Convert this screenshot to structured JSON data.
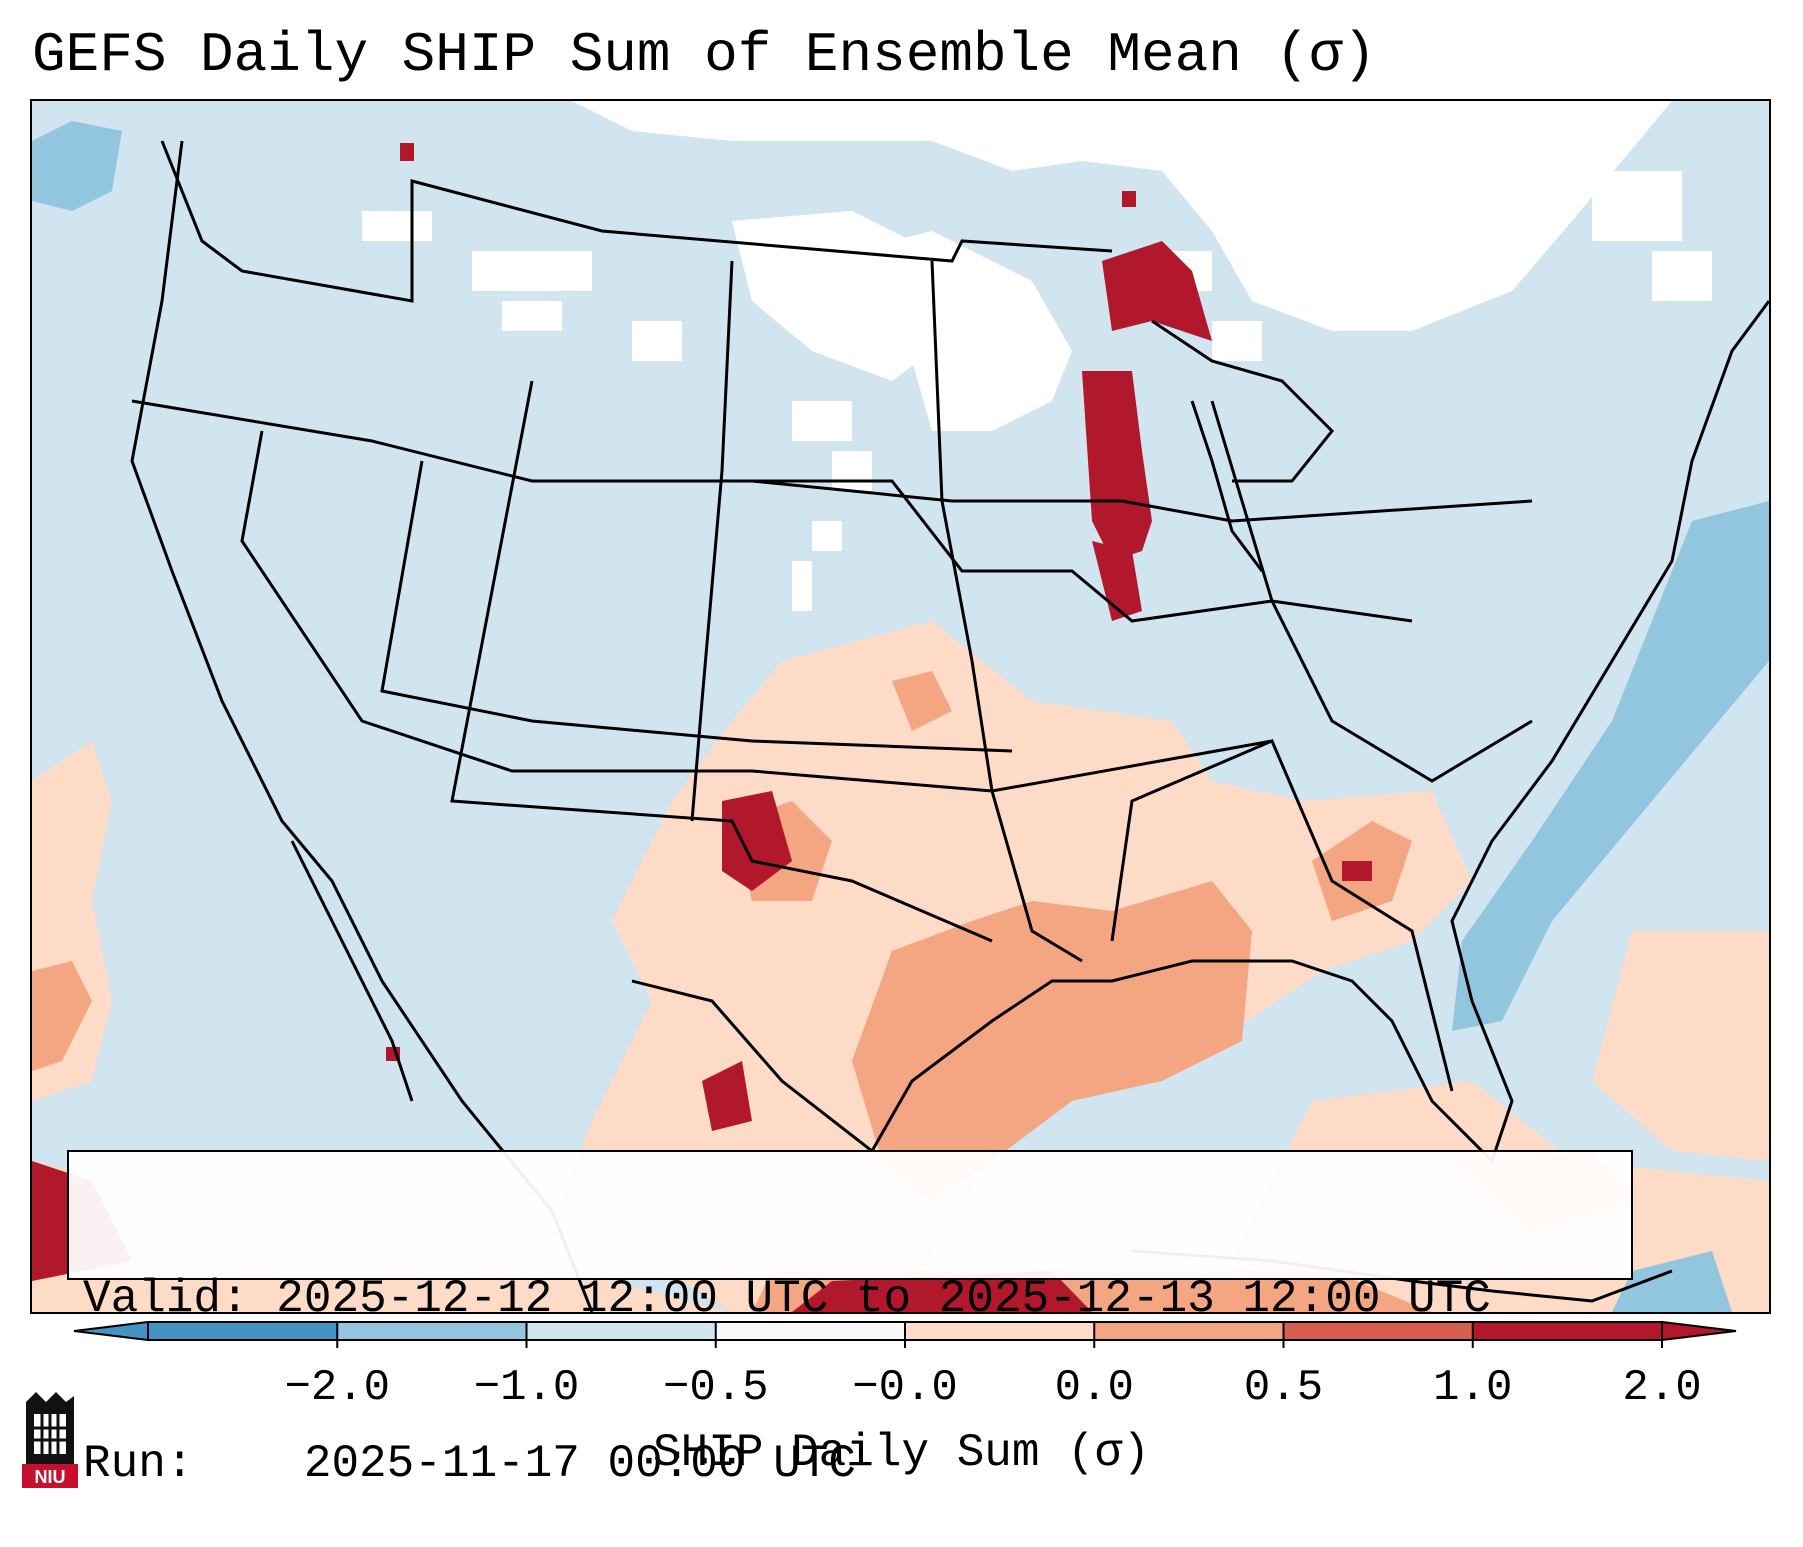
{
  "title": "GEFS Daily SHIP Sum of Ensemble Mean (σ)",
  "info": {
    "valid_label": "Valid:",
    "valid_value": "2025-12-12 12:00 UTC to 2025-12-13 12:00 UTC",
    "run_label": "Run:",
    "run_value": "2025-11-17 00:00 UTC"
  },
  "colorbar": {
    "label": "SHIP Daily Sum (σ)",
    "ticks": [
      "−2.0",
      "−1.0",
      "−0.5",
      "−0.0",
      "0.0",
      "0.5",
      "1.0",
      "2.0"
    ],
    "colors": [
      "#4393c3",
      "#92c5de",
      "#d1e5f0",
      "#f7f7f7",
      "#fddbc7",
      "#f4a582",
      "#d6604d",
      "#b2182b"
    ]
  },
  "logo": {
    "text": "NIU",
    "icon": "niu-logo-icon"
  },
  "map": {
    "icons": [
      "state-borders",
      "coastline",
      "shaded-grid"
    ]
  }
}
